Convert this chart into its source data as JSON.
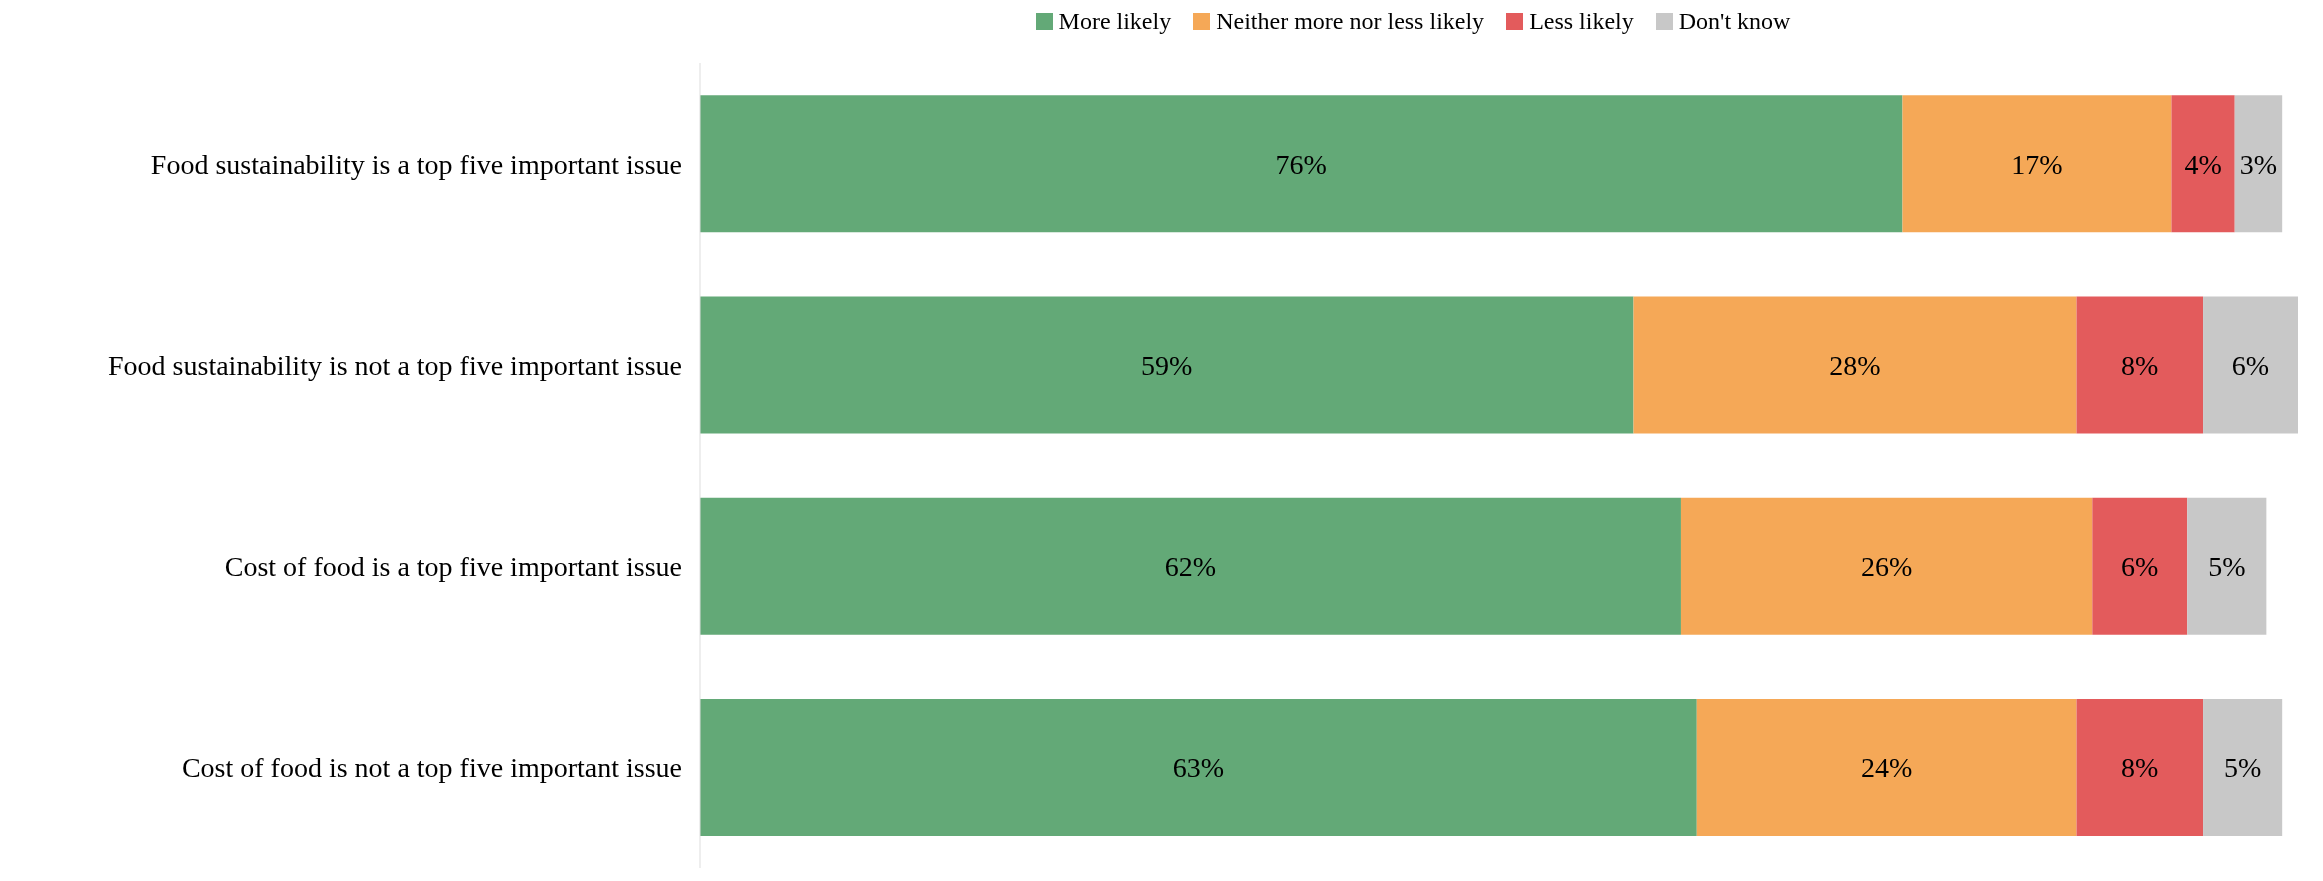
{
  "chart_data": {
    "type": "bar",
    "orientation": "horizontal",
    "stacked": true,
    "legend": "top",
    "grid": false,
    "categories": [
      "Food sustainability is a top five important issue",
      "Food sustainability is not a top five important issue",
      "Cost of food is a top five important issue",
      "Cost of food is not a top five important issue"
    ],
    "series": [
      {
        "name": "More likely",
        "color": "#63a977",
        "values": [
          76,
          59,
          62,
          63
        ],
        "value_labels": [
          "76%",
          "59%",
          "62%",
          "63%"
        ]
      },
      {
        "name": "Neither more nor less likely",
        "color": "#f5a857",
        "values": [
          17,
          28,
          26,
          24
        ],
        "value_labels": [
          "17%",
          "28%",
          "26%",
          "24%"
        ]
      },
      {
        "name": "Less likely",
        "color": "#e35b5c",
        "values": [
          4,
          8,
          6,
          8
        ],
        "value_labels": [
          "4%",
          "8%",
          "6%",
          "8%"
        ]
      },
      {
        "name": "Don't know",
        "color": "#c8c8c8",
        "values": [
          3,
          6,
          5,
          5
        ],
        "value_labels": [
          "3%",
          "6%",
          "5%",
          "5%"
        ]
      }
    ]
  }
}
